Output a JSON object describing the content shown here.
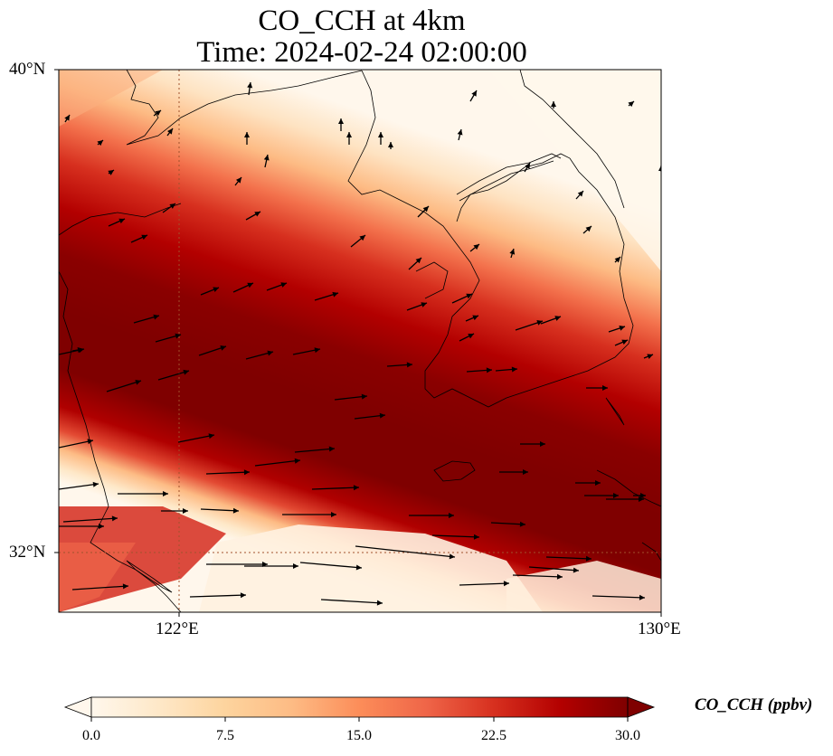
{
  "title": {
    "line1": "CO_CCH at 4km",
    "line2": "Time: 2024-02-24 02:00:00"
  },
  "axes": {
    "lat_ticks": [
      {
        "value": 40,
        "label": "40°N"
      },
      {
        "value": 32,
        "label": "32°N"
      }
    ],
    "lon_ticks": [
      {
        "value": 122,
        "label": "122°E"
      },
      {
        "value": 130,
        "label": "130°E"
      }
    ],
    "extent": {
      "lon_min": 120,
      "lon_max": 130,
      "lat_min": 31,
      "lat_max": 40
    },
    "gridlines": "dotted, at 122°E and 32°N"
  },
  "colorbar": {
    "label": "CO_CCH (ppbv)",
    "colormap": "OrRd",
    "range": [
      0,
      30
    ],
    "extend": "both",
    "ticks": [
      "0.0",
      "7.5",
      "15.0",
      "22.5",
      "30.0"
    ],
    "colors": [
      "#fff7ec",
      "#fee8c8",
      "#fdd49e",
      "#fdbb84",
      "#fc8d59",
      "#ef6548",
      "#d7301f",
      "#b30000",
      "#7f0000"
    ]
  },
  "field": {
    "description_values": "CO concentration band running WNW–ESE",
    "nw_value": 0.0,
    "band_center_value": 30.0,
    "s_edge_value": 2.0
  },
  "wind_vectors": "black quiver arrows, predominantly westerly, stronger in the south"
}
